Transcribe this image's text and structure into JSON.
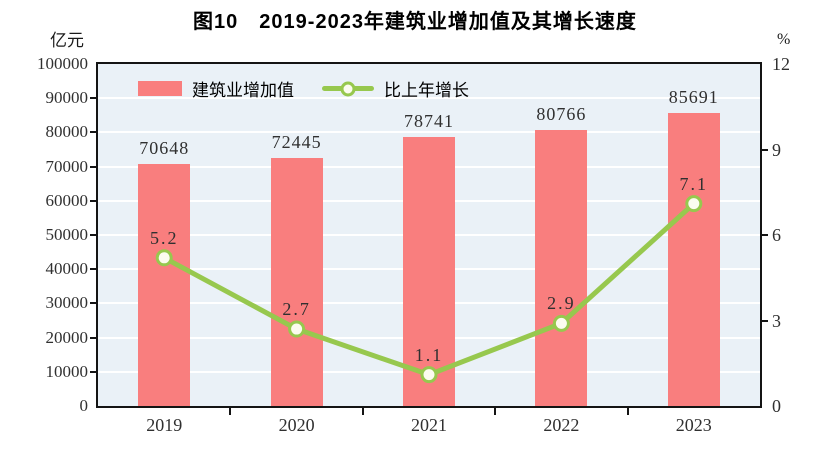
{
  "title": "图10　2019-2023年建筑业增加值及其增长速度",
  "legend": [
    {
      "label": "建筑业增加值",
      "type": "bar"
    },
    {
      "label": "比上年增长",
      "type": "line"
    }
  ],
  "colors": {
    "bar": "#F97E7E",
    "line": "#97C84E",
    "marker_fill": "#FCFCEF",
    "plot_background": "#EAF1F7",
    "gridline": "#FFFFFF",
    "axis_border": "#141414",
    "label_text": "#303030"
  },
  "chart_data": {
    "type": "bar",
    "subtype": "bar+line-combo",
    "title": "图10 2019-2023年建筑业增加值及其增长速度",
    "categories": [
      "2019",
      "2020",
      "2021",
      "2022",
      "2023"
    ],
    "series": [
      {
        "name": "建筑业增加值",
        "type": "bar",
        "axis": "left",
        "values": [
          70648,
          72445,
          78741,
          80766,
          85691
        ]
      },
      {
        "name": "比上年增长",
        "type": "line",
        "axis": "right",
        "values": [
          5.2,
          2.7,
          1.1,
          2.9,
          7.1
        ]
      }
    ],
    "left_axis": {
      "label": "亿元",
      "min": 0,
      "max": 100000,
      "step": 10000
    },
    "right_axis": {
      "label": "%",
      "min": 0,
      "max": 12,
      "step": 3
    },
    "grid": true,
    "legend_position": "top-left-inside"
  }
}
